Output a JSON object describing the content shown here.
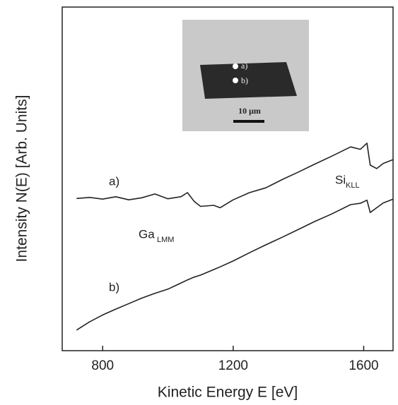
{
  "chart_data": {
    "type": "line",
    "xlabel": "Kinetic Energy E [eV]",
    "ylabel": "Intensity N(E) [Arb. Units]",
    "x": [
      720,
      760,
      800,
      840,
      880,
      920,
      960,
      1000,
      1040,
      1060,
      1080,
      1100,
      1140,
      1160,
      1200,
      1250,
      1300,
      1350,
      1400,
      1450,
      1500,
      1560,
      1590,
      1610,
      1620,
      1640,
      1660,
      1690
    ],
    "series": [
      {
        "name": "a)",
        "color": "#222222",
        "values": [
          44.3,
          44.6,
          44.1,
          44.8,
          43.9,
          44.5,
          45.6,
          44.2,
          44.8,
          46.0,
          43.5,
          42.0,
          42.3,
          41.6,
          43.9,
          46.0,
          47.4,
          49.8,
          52.0,
          54.3,
          56.5,
          59.3,
          58.6,
          60.4,
          54.0,
          53.0,
          54.5,
          55.6
        ]
      },
      {
        "name": "b)",
        "color": "#222222",
        "values": [
          6.0,
          8.4,
          10.4,
          12.1,
          13.7,
          15.3,
          16.7,
          17.9,
          19.7,
          20.6,
          21.4,
          22.0,
          23.6,
          24.4,
          26.1,
          28.5,
          30.8,
          33.0,
          35.3,
          37.6,
          39.7,
          42.5,
          42.9,
          43.8,
          40.2,
          41.6,
          43.0,
          44.1
        ]
      }
    ],
    "xlim": [
      676,
      1690
    ],
    "xticks": [
      800,
      1200,
      1600
    ],
    "ylim": [
      0,
      100
    ],
    "annotations": [
      {
        "text": "Ga",
        "sub": "LMM"
      },
      {
        "text": "Si",
        "sub": "KLL"
      }
    ],
    "inset": {
      "labels": [
        "a)",
        "b)"
      ],
      "scale": "10 μm"
    }
  }
}
